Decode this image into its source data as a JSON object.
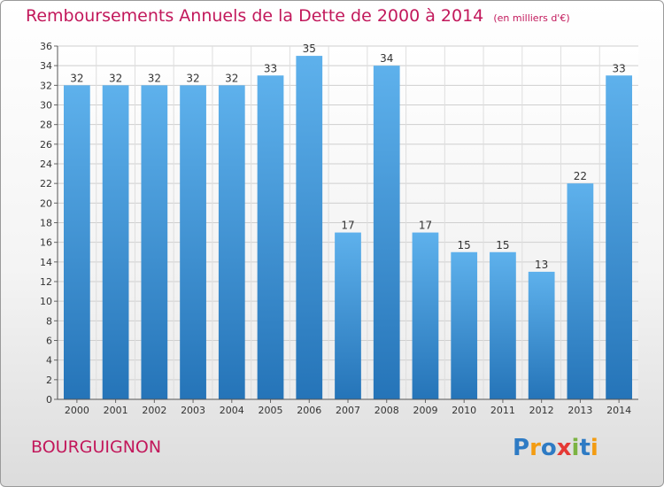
{
  "chart_data": {
    "type": "bar",
    "title": "Remboursements Annuels de la Dette de 2000 à 2014",
    "unit": "(en milliers d'€)",
    "categories": [
      "2000",
      "2001",
      "2002",
      "2003",
      "2004",
      "2005",
      "2006",
      "2007",
      "2008",
      "2009",
      "2010",
      "2011",
      "2012",
      "2013",
      "2014"
    ],
    "values": [
      32,
      32,
      32,
      32,
      32,
      33,
      35,
      17,
      34,
      17,
      15,
      15,
      13,
      22,
      33
    ],
    "ylim": [
      0,
      36
    ],
    "yticks": [
      0,
      2,
      4,
      6,
      8,
      10,
      12,
      14,
      16,
      18,
      20,
      22,
      24,
      26,
      28,
      30,
      32,
      34,
      36
    ],
    "grid": true,
    "bar_color": "#3a8fd4"
  },
  "place_name": "BOURGUIGNON",
  "logo": {
    "text": "Proxiti",
    "letters": [
      {
        "ch": "P",
        "color": "#2e7bc4"
      },
      {
        "ch": "r",
        "color": "#f39c12"
      },
      {
        "ch": "o",
        "color": "#2e7bc4"
      },
      {
        "ch": "x",
        "color": "#e53935"
      },
      {
        "ch": "i",
        "color": "#7cb342"
      },
      {
        "ch": "t",
        "color": "#2e7bc4"
      },
      {
        "ch": "i",
        "color": "#f39c12"
      }
    ]
  }
}
